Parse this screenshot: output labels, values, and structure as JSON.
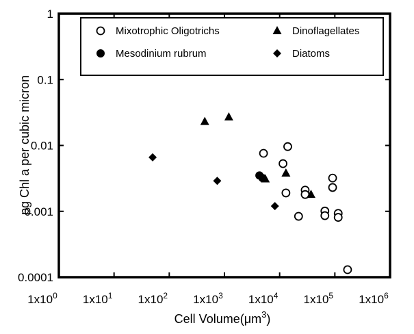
{
  "chart_data": {
    "type": "scatter",
    "ylabel": "pg Chl a per cubic micron",
    "xlabel": {
      "text": "Cell Volume(μm",
      "superscript": "3",
      "suffix": ")"
    },
    "xscale": "log",
    "yscale": "log",
    "xlim": [
      1,
      1000000
    ],
    "ylim": [
      0.0001,
      1
    ],
    "xticks": [
      {
        "value": 1,
        "label": "1x10",
        "exponent": "0"
      },
      {
        "value": 10,
        "label": "1x10",
        "exponent": "1"
      },
      {
        "value": 100,
        "label": "1x10",
        "exponent": "2"
      },
      {
        "value": 1000,
        "label": "1x10",
        "exponent": "3"
      },
      {
        "value": 10000,
        "label": "1x10",
        "exponent": "4"
      },
      {
        "value": 100000,
        "label": "1x10",
        "exponent": "5"
      },
      {
        "value": 1000000,
        "label": "1x10",
        "exponent": "6"
      }
    ],
    "yticks": [
      0.0001,
      0.001,
      0.01,
      0.1,
      1
    ],
    "legend": "top",
    "series": [
      {
        "name": "Mixotrophic Oligotrichs",
        "marker": "open-circle",
        "color": "#000000",
        "x": [
          5100,
          14000,
          11500,
          13000,
          29000,
          29000,
          22000,
          66000,
          66000,
          91000,
          91000,
          115000,
          115000,
          170000
        ],
        "values": [
          0.0076,
          0.0096,
          0.0053,
          0.0019,
          0.0021,
          0.0018,
          0.00084,
          0.00101,
          0.00086,
          0.0032,
          0.0023,
          0.00093,
          0.00081,
          0.00013
        ]
      },
      {
        "name": "Dinoflagellates",
        "marker": "triangle",
        "color": "#000000",
        "x": [
          440,
          1200,
          5500,
          13000,
          37000
        ],
        "values": [
          0.023,
          0.027,
          0.0031,
          0.0038,
          0.0018
        ]
      },
      {
        "name": "Mesodinium rubrum",
        "marker": "circle",
        "color": "#000000",
        "x": [
          4300,
          4900
        ],
        "values": [
          0.0035,
          0.0032
        ]
      },
      {
        "name": "Diatoms",
        "marker": "diamond",
        "color": "#000000",
        "x": [
          50,
          740,
          8200
        ],
        "values": [
          0.0066,
          0.0029,
          0.0012
        ]
      }
    ]
  }
}
